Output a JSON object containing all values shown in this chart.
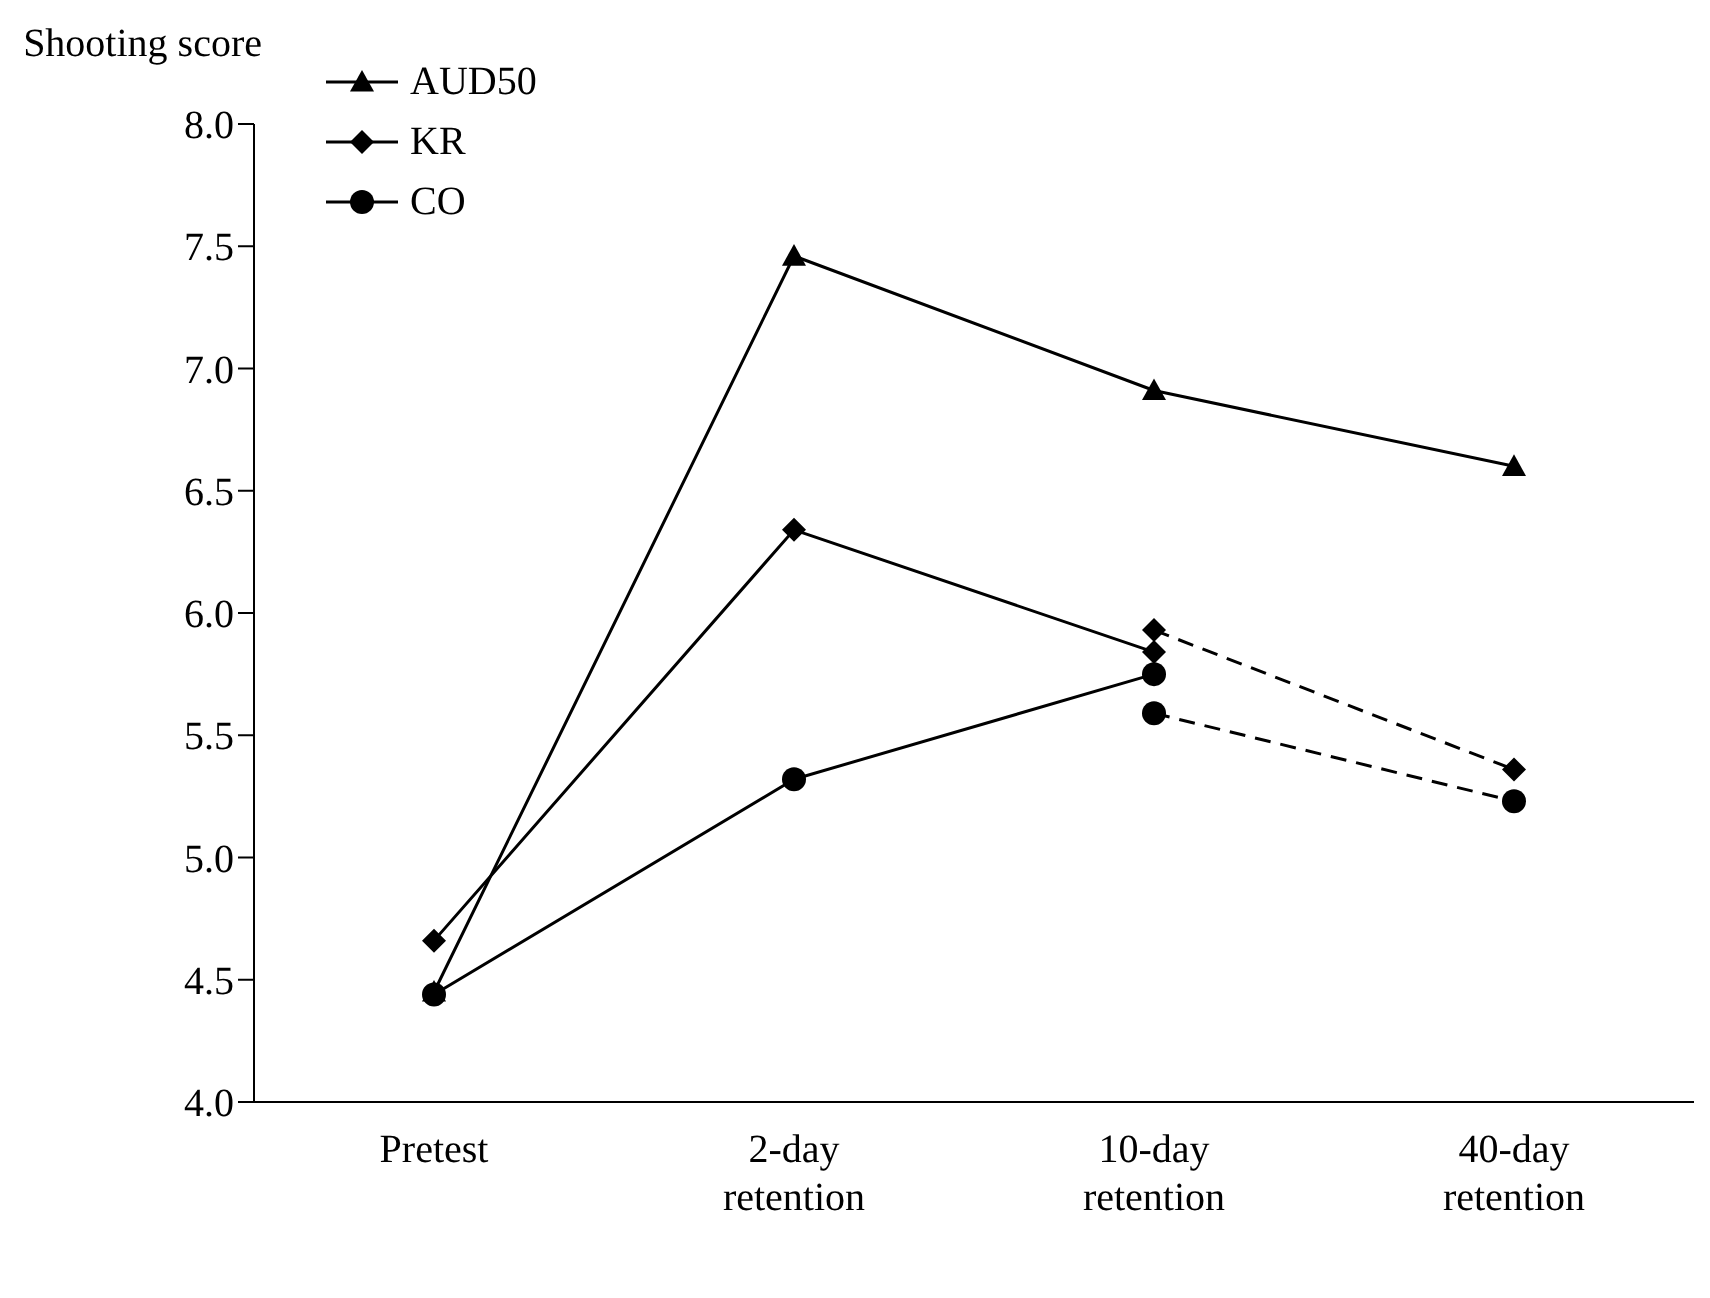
{
  "chart_data": {
    "type": "line",
    "ylabel": "Shooting score",
    "categories": [
      "Pretest",
      "2-day retention",
      "10-day retention",
      "40-day retention"
    ],
    "series": [
      {
        "name": "AUD50",
        "color": "#000000",
        "marker": "triangle",
        "line_style": "solid",
        "values": [
          4.45,
          7.46,
          6.91,
          6.6
        ]
      },
      {
        "name": "KR",
        "color": "#000000",
        "marker": "diamond",
        "line_style": "solid",
        "values": [
          4.66,
          6.34,
          5.84,
          null
        ]
      },
      {
        "name": "CO",
        "color": "#000000",
        "marker": "circle",
        "line_style": "solid",
        "values": [
          4.44,
          5.32,
          5.75,
          null
        ]
      },
      {
        "color": "#000000",
        "marker": "diamond",
        "line_style": "dashed",
        "values": [
          null,
          null,
          5.93,
          5.36
        ]
      },
      {
        "color": "#000000",
        "marker": "circle",
        "line_style": "dashed",
        "values": [
          null,
          null,
          5.59,
          5.23
        ]
      }
    ],
    "ylim": [
      4,
      8
    ],
    "yticks": [
      {
        "value": 4,
        "label": "4.0"
      },
      {
        "value": 4.5,
        "label": "4.5"
      },
      {
        "value": 5,
        "label": "5.0"
      },
      {
        "value": 5.5,
        "label": "5.5"
      },
      {
        "value": 6,
        "label": "6.0"
      },
      {
        "value": 6.5,
        "label": "6.5"
      },
      {
        "value": 7,
        "label": "7.0"
      },
      {
        "value": 7.5,
        "label": "7.5"
      },
      {
        "value": 8,
        "label": "8.0"
      }
    ],
    "grid": false,
    "legend": "top left"
  }
}
